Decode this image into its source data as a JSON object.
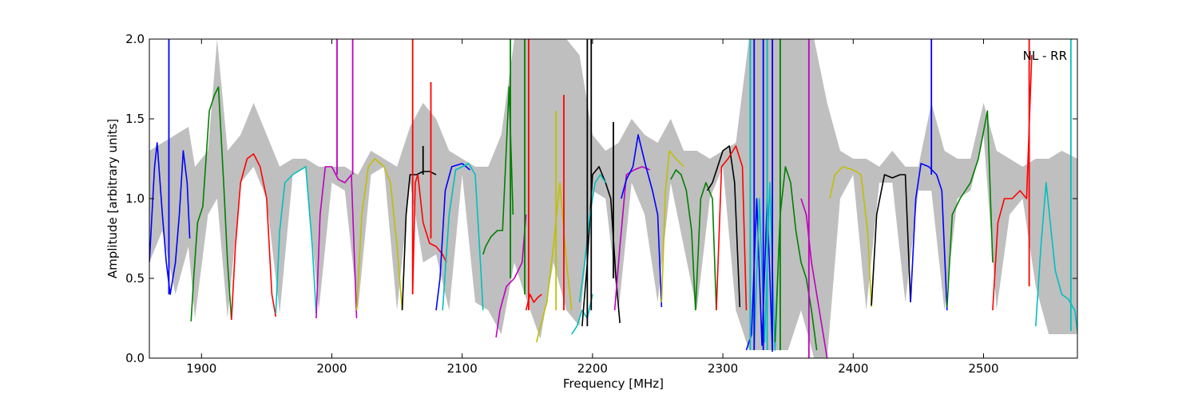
{
  "chart_data": {
    "type": "line",
    "title": "",
    "annotation": "NL - RR",
    "xlabel": "Frequency [MHz]",
    "ylabel": "Amplitude [arbitrary units]",
    "xlim": [
      1860,
      2572
    ],
    "ylim": [
      0.0,
      2.0
    ],
    "xticks": [
      1900,
      2000,
      2100,
      2200,
      2300,
      2400,
      2500
    ],
    "xtick_labels": [
      "1900",
      "2000",
      "2100",
      "2200",
      "2300",
      "2400",
      "2500"
    ],
    "yticks": [
      0.0,
      0.5,
      1.0,
      1.5,
      2.0
    ],
    "ytick_labels": [
      "0.0",
      "0.5",
      "1.0",
      "1.5",
      "2.0"
    ],
    "grid": false,
    "background_envelope": {
      "color": "#bfbfbf",
      "x": [
        1860,
        1870,
        1880,
        1890,
        1895,
        1905,
        1912,
        1920,
        1930,
        1940,
        1950,
        1960,
        1970,
        1980,
        1990,
        2000,
        2010,
        2020,
        2030,
        2040,
        2050,
        2060,
        2070,
        2080,
        2090,
        2100,
        2110,
        2120,
        2130,
        2140,
        2150,
        2160,
        2170,
        2180,
        2190,
        2200,
        2210,
        2220,
        2230,
        2240,
        2250,
        2260,
        2270,
        2280,
        2290,
        2300,
        2310,
        2320,
        2330,
        2340,
        2350,
        2360,
        2370,
        2380,
        2390,
        2400,
        2410,
        2420,
        2430,
        2440,
        2450,
        2460,
        2470,
        2480,
        2490,
        2500,
        2510,
        2520,
        2530,
        2540,
        2550,
        2560,
        2572
      ],
      "upper": [
        1.3,
        1.35,
        1.4,
        1.45,
        1.2,
        1.3,
        2.0,
        1.3,
        1.4,
        1.6,
        1.4,
        1.2,
        1.25,
        1.25,
        1.2,
        1.2,
        1.2,
        1.15,
        1.3,
        1.25,
        1.2,
        1.45,
        1.6,
        1.5,
        1.3,
        1.25,
        1.2,
        1.2,
        1.4,
        2.0,
        2.0,
        2.0,
        2.0,
        2.0,
        1.9,
        1.4,
        1.3,
        1.35,
        1.5,
        1.4,
        1.35,
        1.5,
        1.3,
        1.3,
        1.25,
        1.3,
        1.35,
        2.0,
        2.0,
        2.0,
        2.0,
        2.0,
        2.0,
        1.6,
        1.3,
        1.25,
        1.25,
        1.2,
        1.3,
        1.2,
        1.2,
        1.6,
        1.3,
        1.25,
        1.25,
        1.6,
        1.3,
        1.25,
        1.2,
        1.25,
        1.25,
        1.3,
        1.25
      ],
      "lower": [
        0.6,
        0.8,
        0.4,
        0.7,
        0.25,
        0.9,
        1.0,
        0.25,
        1.1,
        1.2,
        1.0,
        0.28,
        1.15,
        1.2,
        0.3,
        1.1,
        1.05,
        0.3,
        1.15,
        1.2,
        0.3,
        1.1,
        0.6,
        0.65,
        0.3,
        1.15,
        0.35,
        0.3,
        0.15,
        0.6,
        0.35,
        0.12,
        0.6,
        0.3,
        0.2,
        1.05,
        1.0,
        0.3,
        1.1,
        0.9,
        0.35,
        1.1,
        0.7,
        0.3,
        1.0,
        1.2,
        0.3,
        0.05,
        0.05,
        0.05,
        0.05,
        0.3,
        0.0,
        0.0,
        1.0,
        1.15,
        0.3,
        1.1,
        1.1,
        0.35,
        1.05,
        1.05,
        0.3,
        1.0,
        1.05,
        1.4,
        0.3,
        0.9,
        1.0,
        0.45,
        0.15,
        0.15,
        0.15
      ]
    },
    "series": [
      {
        "color": "#0000ff",
        "x": [
          1860,
          1864,
          1866,
          1870,
          1873,
          1876,
          1878,
          1880,
          1883,
          1886,
          1889,
          1891
        ],
        "y": [
          0.6,
          1.2,
          1.35,
          0.9,
          0.6,
          0.4,
          0.5,
          0.6,
          0.9,
          1.3,
          1.1,
          0.75
        ]
      },
      {
        "color": "#008000",
        "x": [
          1892,
          1894,
          1897,
          1901,
          1906,
          1910,
          1913,
          1917,
          1920,
          1923
        ],
        "y": [
          0.23,
          0.5,
          0.85,
          0.95,
          1.55,
          1.65,
          1.7,
          1.1,
          0.6,
          0.24
        ]
      },
      {
        "color": "#ff0000",
        "x": [
          1923,
          1926,
          1930,
          1935,
          1940,
          1945,
          1950,
          1954,
          1957
        ],
        "y": [
          0.24,
          0.7,
          1.1,
          1.25,
          1.28,
          1.2,
          1.0,
          0.4,
          0.26
        ]
      },
      {
        "color": "#00bfbf",
        "x": [
          1957,
          1960,
          1964,
          1970,
          1980,
          1985,
          1988
        ],
        "y": [
          0.28,
          0.8,
          1.1,
          1.15,
          1.2,
          0.7,
          0.28
        ]
      },
      {
        "color": "#bf00bf",
        "x": [
          1988,
          1991,
          1995,
          2000,
          2005,
          2010,
          2015,
          2019
        ],
        "y": [
          0.25,
          0.9,
          1.2,
          1.2,
          1.12,
          1.1,
          1.15,
          0.25
        ]
      },
      {
        "color": "#bfbf00",
        "x": [
          2019,
          2023,
          2028,
          2033,
          2040,
          2045,
          2050,
          2054
        ],
        "y": [
          0.3,
          0.9,
          1.2,
          1.25,
          1.2,
          1.1,
          0.7,
          0.3
        ]
      },
      {
        "color": "#000000",
        "x": [
          2054,
          2057,
          2060,
          2065,
          2070,
          2075,
          2080
        ],
        "y": [
          0.3,
          0.9,
          1.15,
          1.15,
          1.17,
          1.17,
          1.15
        ]
      },
      {
        "color": "#ff0000",
        "x": [
          2062,
          2064,
          2066,
          2070,
          2075,
          2080,
          2085,
          2088
        ],
        "y": [
          0.4,
          1.1,
          1.15,
          0.85,
          0.72,
          0.7,
          0.65,
          0.6
        ]
      },
      {
        "color": "#0000ff",
        "x": [
          2080,
          2083,
          2087,
          2092,
          2100,
          2106
        ],
        "y": [
          0.3,
          0.5,
          1.05,
          1.2,
          1.22,
          1.18
        ]
      },
      {
        "color": "#00bfbf",
        "x": [
          2085,
          2090,
          2095,
          2100,
          2105,
          2110,
          2114,
          2116
        ],
        "y": [
          0.3,
          0.9,
          1.18,
          1.2,
          1.22,
          1.15,
          0.6,
          0.3
        ]
      },
      {
        "color": "#008000",
        "x": [
          2116,
          2118,
          2122,
          2127,
          2131,
          2136,
          2139
        ],
        "y": [
          0.65,
          0.7,
          0.76,
          0.8,
          0.8,
          1.7,
          0.9
        ]
      },
      {
        "color": "#bf00bf",
        "x": [
          2126,
          2129,
          2134,
          2140,
          2146,
          2149
        ],
        "y": [
          0.13,
          0.3,
          0.45,
          0.5,
          0.6,
          0.9
        ]
      },
      {
        "color": "#ff0000",
        "x": [
          2149,
          2152,
          2155,
          2158,
          2161
        ],
        "y": [
          0.3,
          0.4,
          0.35,
          0.38,
          0.4
        ]
      },
      {
        "color": "#bfbf00",
        "x": [
          2157,
          2160,
          2165,
          2170,
          2175,
          2180,
          2184
        ],
        "y": [
          0.1,
          0.2,
          0.35,
          0.7,
          1.1,
          0.6,
          0.3
        ]
      },
      {
        "color": "#00bfbf",
        "x": [
          2184,
          2188,
          2192,
          2196,
          2200
        ],
        "y": [
          0.15,
          0.2,
          0.3,
          0.25,
          0.4
        ]
      },
      {
        "color": "#000000",
        "x": [
          2192,
          2196,
          2200,
          2205,
          2210,
          2214,
          2218,
          2221
        ],
        "y": [
          0.2,
          0.6,
          1.15,
          1.2,
          1.1,
          1.0,
          0.5,
          0.22
        ]
      },
      {
        "color": "#00bfbf",
        "x": [
          2190,
          2194,
          2198,
          2202,
          2206,
          2210
        ],
        "y": [
          0.35,
          0.6,
          0.9,
          1.1,
          1.15,
          1.1
        ]
      },
      {
        "color": "#bf00bf",
        "x": [
          2217,
          2221,
          2226,
          2232,
          2238,
          2244
        ],
        "y": [
          0.3,
          0.7,
          1.15,
          1.18,
          1.2,
          1.18
        ]
      },
      {
        "color": "#0000ff",
        "x": [
          2222,
          2226,
          2231,
          2235,
          2241,
          2246,
          2250,
          2253
        ],
        "y": [
          1.0,
          1.12,
          1.2,
          1.4,
          1.2,
          1.05,
          0.9,
          0.32
        ]
      },
      {
        "color": "#bfbf00",
        "x": [
          2253,
          2256,
          2259,
          2264,
          2270
        ],
        "y": [
          0.35,
          1.05,
          1.3,
          1.25,
          1.2
        ]
      },
      {
        "color": "#008000",
        "x": [
          2260,
          2264,
          2268,
          2272,
          2276,
          2279
        ],
        "y": [
          1.12,
          1.18,
          1.15,
          1.05,
          0.8,
          0.3
        ]
      },
      {
        "color": "#008000",
        "x": [
          2279,
          2283,
          2287,
          2292,
          2295
        ],
        "y": [
          0.3,
          1.0,
          1.1,
          1.0,
          0.3
        ]
      },
      {
        "color": "#000000",
        "x": [
          2288,
          2292,
          2296,
          2300,
          2305,
          2309,
          2313
        ],
        "y": [
          1.05,
          1.1,
          1.2,
          1.3,
          1.33,
          1.1,
          0.32
        ]
      },
      {
        "color": "#ff0000",
        "x": [
          2295,
          2299,
          2304,
          2310,
          2315,
          2318
        ],
        "y": [
          0.3,
          1.2,
          1.25,
          1.33,
          1.2,
          0.3
        ]
      },
      {
        "color": "#0000ff",
        "x": [
          2318,
          2322,
          2326,
          2330,
          2334,
          2338
        ],
        "y": [
          0.05,
          0.15,
          1.0,
          0.08,
          1.0,
          0.04
        ]
      },
      {
        "color": "#00bfbf",
        "x": [
          2324,
          2328,
          2332,
          2336,
          2340,
          2344
        ],
        "y": [
          0.05,
          1.0,
          0.1,
          1.1,
          0.05,
          0.9
        ]
      },
      {
        "color": "#008000",
        "x": [
          2340,
          2344,
          2348,
          2352,
          2356,
          2360,
          2364,
          2368,
          2372
        ],
        "y": [
          0.1,
          0.9,
          1.2,
          1.1,
          0.8,
          0.6,
          0.5,
          0.3,
          0.05
        ]
      },
      {
        "color": "#bf00bf",
        "x": [
          2360,
          2364,
          2368,
          2372,
          2376,
          2380
        ],
        "y": [
          1.0,
          0.9,
          0.6,
          0.4,
          0.2,
          0.0
        ]
      },
      {
        "color": "#bfbf00",
        "x": [
          2382,
          2386,
          2392,
          2400,
          2406,
          2411,
          2414
        ],
        "y": [
          1.0,
          1.15,
          1.2,
          1.18,
          1.15,
          0.8,
          0.32
        ]
      },
      {
        "color": "#000000",
        "x": [
          2414,
          2418,
          2424,
          2430,
          2436,
          2440,
          2444
        ],
        "y": [
          0.33,
          0.9,
          1.15,
          1.13,
          1.15,
          1.15,
          0.35
        ]
      },
      {
        "color": "#0000ff",
        "x": [
          2444,
          2448,
          2452,
          2458,
          2464,
          2468,
          2472
        ],
        "y": [
          0.35,
          1.0,
          1.22,
          1.2,
          1.15,
          1.05,
          0.3
        ]
      },
      {
        "color": "#008000",
        "x": [
          2472,
          2476,
          2482,
          2490,
          2496,
          2503,
          2507
        ],
        "y": [
          0.32,
          0.9,
          1.0,
          1.1,
          1.25,
          1.55,
          0.6
        ]
      },
      {
        "color": "#ff0000",
        "x": [
          2507,
          2511,
          2516,
          2522,
          2528,
          2533,
          2537
        ],
        "y": [
          0.3,
          0.85,
          1.0,
          1.0,
          1.05,
          1.0,
          1.9
        ]
      },
      {
        "color": "#00bfbf",
        "x": [
          2540,
          2544,
          2548,
          2555,
          2560,
          2565,
          2570,
          2572
        ],
        "y": [
          0.2,
          0.7,
          1.1,
          0.55,
          0.4,
          0.37,
          0.3,
          0.17
        ]
      }
    ],
    "spikes": [
      {
        "color": "#0000ff",
        "x": 1875,
        "y0": 0.4,
        "y1": 2.0
      },
      {
        "color": "#bf00bf",
        "x": 2004,
        "y0": 1.15,
        "y1": 2.0
      },
      {
        "color": "#bf00bf",
        "x": 2016,
        "y0": 1.15,
        "y1": 2.0
      },
      {
        "color": "#ff0000",
        "x": 2062,
        "y0": 0.4,
        "y1": 2.0
      },
      {
        "color": "#ff0000",
        "x": 2076,
        "y0": 0.75,
        "y1": 1.73
      },
      {
        "color": "#000000",
        "x": 2070,
        "y0": 1.15,
        "y1": 1.33
      },
      {
        "color": "#008000",
        "x": 2137,
        "y0": 0.5,
        "y1": 2.0
      },
      {
        "color": "#008000",
        "x": 2148,
        "y0": 0.4,
        "y1": 2.0
      },
      {
        "color": "#ff0000",
        "x": 2151,
        "y0": 0.3,
        "y1": 2.0
      },
      {
        "color": "#bfbf00",
        "x": 2172,
        "y0": 0.3,
        "y1": 1.55
      },
      {
        "color": "#ff0000",
        "x": 2178,
        "y0": 0.3,
        "y1": 1.65
      },
      {
        "color": "#000000",
        "x": 2196,
        "y0": 0.2,
        "y1": 2.0
      },
      {
        "color": "#000000",
        "x": 2199,
        "y0": 0.3,
        "y1": 2.0
      },
      {
        "color": "#000000",
        "x": 2216,
        "y0": 0.5,
        "y1": 1.48
      },
      {
        "color": "#0000ff",
        "x": 2324,
        "y0": 0.05,
        "y1": 2.0
      },
      {
        "color": "#00bfbf",
        "x": 2321,
        "y0": 0.05,
        "y1": 2.0
      },
      {
        "color": "#0000ff",
        "x": 2331,
        "y0": 0.05,
        "y1": 2.0
      },
      {
        "color": "#00bfbf",
        "x": 2334,
        "y0": 0.05,
        "y1": 2.0
      },
      {
        "color": "#0000ff",
        "x": 2338,
        "y0": 0.05,
        "y1": 2.0
      },
      {
        "color": "#008000",
        "x": 2344,
        "y0": 0.05,
        "y1": 2.0
      },
      {
        "color": "#bf00bf",
        "x": 2366,
        "y0": 0.0,
        "y1": 2.0
      },
      {
        "color": "#0000ff",
        "x": 2460,
        "y0": 1.15,
        "y1": 2.0
      },
      {
        "color": "#ff0000",
        "x": 2535,
        "y0": 0.45,
        "y1": 2.0
      },
      {
        "color": "#00bfbf",
        "x": 2567,
        "y0": 0.17,
        "y1": 2.0
      }
    ]
  }
}
